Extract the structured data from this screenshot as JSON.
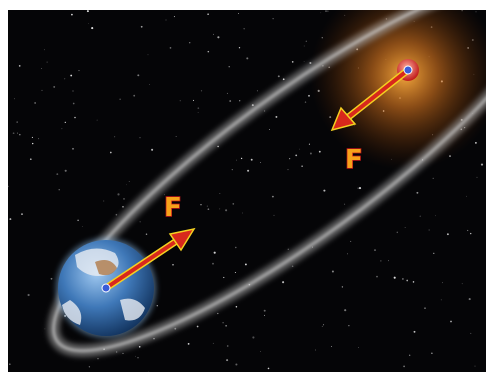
{
  "labels": {
    "force_on_earth": "F",
    "force_on_sun": "F"
  }
}
